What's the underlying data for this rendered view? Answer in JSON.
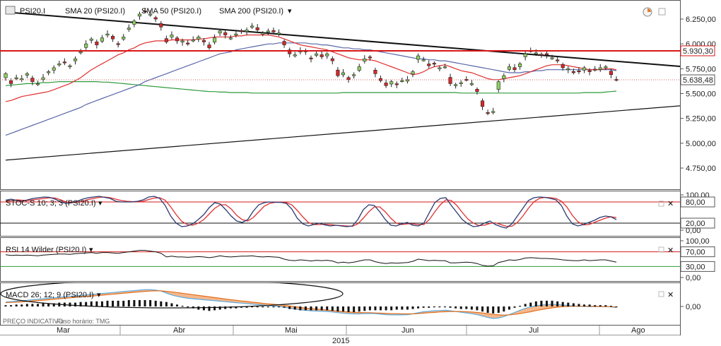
{
  "legend": {
    "symbol": "PSI20.I",
    "sma20": "SMA 20 (PSI20.I)",
    "sma50": "SMA 50 (PSI20.I)",
    "sma200": "SMA 200 (PSI20.I)",
    "stoch": "STOC-S 10; 3; 3 (PSI20.I)",
    "rsi": "RSI 14 Wilder (PSI20.I)",
    "macd": "MACD 26; 12; 9 (PSI20.I)"
  },
  "footer": {
    "note": "PREÇO INDICATIVO",
    "tz": "Fuso horário: TMG",
    "year": "2015"
  },
  "colors": {
    "sma20": "#e03030",
    "sma50": "#5a68a8",
    "sma200": "#2e9a3c",
    "up": "#8ed060",
    "down": "#d82828",
    "hline": "#d81818",
    "stochK": "#2a3a70",
    "stochD": "#e03030",
    "macdHist": "#111111",
    "macdLine": "#5aaae0",
    "macdFill": "#f3b080",
    "signal": "#e07020"
  },
  "chart_data": [
    {
      "type": "candlestick",
      "name": "PSI20.I",
      "x_months": [
        "Mar",
        "Abr",
        "Mai",
        "Jun",
        "Jul",
        "Ago"
      ],
      "y_ticks": [
        "6.250,00",
        "6.000,00",
        "5.750,00",
        "5.500,00",
        "5.250,00",
        "5.000,00",
        "4.750,00"
      ],
      "ylim": [
        4600,
        6400
      ],
      "last_price": "5.638,48",
      "resistance": "5.930,30",
      "closes": [
        5700,
        5600,
        5660,
        5650,
        5700,
        5620,
        5600,
        5660,
        5720,
        5760,
        5800,
        5810,
        5780,
        5850,
        5920,
        6000,
        6050,
        5990,
        6060,
        6100,
        6050,
        6000,
        6070,
        6160,
        6230,
        6300,
        6330,
        6300,
        6250,
        6170,
        6020,
        6090,
        6030,
        6030,
        6000,
        6040,
        6070,
        6020,
        5960,
        6060,
        6130,
        6090,
        6060,
        6100,
        6130,
        6140,
        6180,
        6140,
        6110,
        6130,
        6120,
        6110,
        5990,
        5900,
        5890,
        5930,
        5920,
        5850,
        5900,
        5870,
        5900,
        5830,
        5680,
        5710,
        5640,
        5690,
        5770,
        5850,
        5860,
        5700,
        5630,
        5580,
        5620,
        5590,
        5630,
        5640,
        5720,
        5880,
        5840,
        5780,
        5800,
        5760,
        5770,
        5600,
        5590,
        5610,
        5640,
        5600,
        5520,
        5370,
        5300,
        5320,
        5620,
        5680,
        5770,
        5740,
        5800,
        5900,
        5930,
        5910,
        5890,
        5890,
        5860,
        5830,
        5760,
        5750,
        5710,
        5720,
        5760,
        5720,
        5740,
        5760,
        5770,
        5690,
        5640
      ],
      "sma20": [
        5420,
        5430,
        5450,
        5470,
        5480,
        5490,
        5500,
        5510,
        5520,
        5540,
        5560,
        5580,
        5600,
        5630,
        5660,
        5700,
        5740,
        5770,
        5800,
        5830,
        5860,
        5890,
        5910,
        5940,
        5960,
        5990,
        6010,
        6020,
        6030,
        6030,
        6030,
        6040,
        6040,
        6040,
        6040,
        6040,
        6050,
        6050,
        6060,
        6070,
        6070,
        6070,
        6070,
        6080,
        6080,
        6090,
        6090,
        6090,
        6090,
        6090,
        6080,
        6070,
        6050,
        6030,
        6010,
        5990,
        5980,
        5970,
        5960,
        5950,
        5940,
        5920,
        5900,
        5880,
        5860,
        5850,
        5840,
        5840,
        5840,
        5830,
        5810,
        5790,
        5770,
        5750,
        5730,
        5710,
        5690,
        5700,
        5720,
        5750,
        5770,
        5780,
        5790,
        5770,
        5750,
        5730,
        5720,
        5710,
        5690,
        5670,
        5650,
        5640,
        5640,
        5650,
        5660,
        5670,
        5680,
        5700,
        5720,
        5740,
        5760,
        5780,
        5790,
        5790,
        5790,
        5780,
        5770,
        5760,
        5750,
        5740,
        5740,
        5740,
        5750,
        5750,
        5740
      ],
      "sma50": [
        5080,
        5100,
        5120,
        5140,
        5160,
        5180,
        5200,
        5220,
        5240,
        5260,
        5280,
        5300,
        5320,
        5340,
        5360,
        5390,
        5410,
        5430,
        5450,
        5470,
        5490,
        5510,
        5530,
        5550,
        5570,
        5590,
        5620,
        5640,
        5660,
        5680,
        5700,
        5720,
        5740,
        5760,
        5780,
        5800,
        5820,
        5840,
        5860,
        5880,
        5900,
        5910,
        5920,
        5940,
        5950,
        5960,
        5970,
        5980,
        5990,
        6000,
        6000,
        6010,
        6010,
        6010,
        6010,
        6010,
        6010,
        6000,
        6000,
        5990,
        5990,
        5980,
        5970,
        5960,
        5960,
        5950,
        5950,
        5940,
        5940,
        5930,
        5920,
        5910,
        5900,
        5890,
        5880,
        5870,
        5860,
        5850,
        5850,
        5840,
        5840,
        5830,
        5830,
        5820,
        5810,
        5800,
        5790,
        5780,
        5770,
        5760,
        5750,
        5740,
        5730,
        5720,
        5710,
        5710,
        5710,
        5720,
        5720,
        5730,
        5730,
        5740,
        5740,
        5740,
        5740,
        5740,
        5740,
        5740,
        5740,
        5740,
        5740,
        5740,
        5740,
        5740,
        5730
      ],
      "sma200": [
        5580,
        5585,
        5590,
        5595,
        5600,
        5600,
        5605,
        5610,
        5610,
        5615,
        5620,
        5620,
        5620,
        5620,
        5620,
        5620,
        5620,
        5620,
        5615,
        5615,
        5610,
        5605,
        5600,
        5595,
        5590,
        5585,
        5580,
        5575,
        5570,
        5565,
        5560,
        5555,
        5550,
        5545,
        5540,
        5535,
        5530,
        5525,
        5520,
        5520,
        5515,
        5515,
        5510,
        5510,
        5510,
        5510,
        5505,
        5505,
        5505,
        5505,
        5505,
        5505,
        5505,
        5505,
        5505,
        5505,
        5505,
        5505,
        5505,
        5505,
        5505,
        5505,
        5505,
        5510,
        5510,
        5510,
        5510,
        5510,
        5510,
        5510,
        5510,
        5510,
        5510,
        5510,
        5510,
        5510,
        5510,
        5510,
        5510,
        5510,
        5510,
        5510,
        5510,
        5510,
        5510,
        5505,
        5505,
        5505,
        5505,
        5505,
        5505,
        5505,
        5505,
        5505,
        5505,
        5505,
        5505,
        5505,
        5505,
        5505,
        5505,
        5505,
        5505,
        5505,
        5505,
        5505,
        5505,
        5505,
        5510,
        5510,
        5510,
        5510,
        5515,
        5520,
        5525
      ],
      "trendline_down": [
        [
          0,
          6320
        ],
        [
          129,
          5760
        ]
      ],
      "trendline_up": [
        [
          0,
          4830
        ],
        [
          129,
          5390
        ]
      ]
    },
    {
      "type": "line",
      "name": "STOC-S 10; 3; 3",
      "y_ticks": [
        "100,00",
        "80,00",
        "20,00",
        "0,00"
      ],
      "levels": [
        80,
        20
      ],
      "k": [
        85,
        88,
        84,
        82,
        86,
        90,
        92,
        94,
        93,
        88,
        80,
        76,
        78,
        82,
        88,
        92,
        94,
        96,
        93,
        90,
        82,
        80,
        80,
        80,
        82,
        86,
        94,
        96,
        90,
        70,
        40,
        20,
        10,
        12,
        18,
        30,
        44,
        64,
        78,
        74,
        58,
        40,
        26,
        22,
        30,
        54,
        72,
        78,
        80,
        79,
        79,
        76,
        60,
        34,
        18,
        12,
        16,
        20,
        15,
        12,
        14,
        12,
        10,
        12,
        30,
        58,
        72,
        70,
        52,
        30,
        14,
        12,
        18,
        22,
        14,
        12,
        20,
        50,
        78,
        90,
        92,
        70,
        50,
        30,
        18,
        10,
        12,
        20,
        26,
        16,
        10,
        6,
        18,
        40,
        62,
        84,
        92,
        94,
        93,
        90,
        86,
        70,
        40,
        18,
        12,
        16,
        22,
        28,
        36,
        40,
        38,
        30
      ],
      "d": [
        82,
        84,
        86,
        85,
        84,
        86,
        88,
        90,
        92,
        91,
        86,
        80,
        78,
        79,
        82,
        87,
        90,
        93,
        94,
        92,
        88,
        84,
        82,
        81,
        81,
        82,
        87,
        91,
        92,
        85,
        66,
        44,
        25,
        16,
        14,
        20,
        30,
        46,
        62,
        72,
        72,
        60,
        42,
        30,
        26,
        36,
        52,
        68,
        76,
        79,
        79,
        78,
        72,
        56,
        38,
        22,
        16,
        16,
        17,
        16,
        14,
        13,
        12,
        11,
        18,
        34,
        52,
        66,
        66,
        52,
        34,
        20,
        16,
        18,
        18,
        16,
        16,
        30,
        52,
        72,
        86,
        84,
        70,
        50,
        32,
        20,
        13,
        14,
        19,
        21,
        16,
        11,
        11,
        22,
        40,
        62,
        80,
        90,
        93,
        92,
        90,
        82,
        66,
        42,
        24,
        15,
        16,
        22,
        28,
        34,
        38,
        36
      ]
    },
    {
      "type": "line",
      "name": "RSI 14 Wilder",
      "y_ticks": [
        "100,00",
        "70,00",
        "30,00",
        "0,00"
      ],
      "levels": [
        70,
        30
      ],
      "values": [
        62,
        60,
        61,
        60,
        61,
        60,
        59,
        61,
        62,
        63,
        64,
        64,
        63,
        65,
        66,
        67,
        68,
        66,
        68,
        68,
        67,
        66,
        68,
        70,
        72,
        74,
        74,
        72,
        70,
        66,
        56,
        58,
        56,
        56,
        55,
        56,
        57,
        56,
        54,
        56,
        59,
        57,
        56,
        57,
        58,
        58,
        59,
        57,
        56,
        57,
        56,
        55,
        50,
        47,
        46,
        48,
        47,
        45,
        47,
        46,
        47,
        45,
        40,
        42,
        40,
        42,
        45,
        48,
        48,
        43,
        40,
        38,
        40,
        39,
        40,
        41,
        44,
        50,
        48,
        46,
        47,
        46,
        46,
        40,
        40,
        41,
        42,
        41,
        38,
        33,
        31,
        32,
        41,
        44,
        48,
        47,
        49,
        53,
        54,
        53,
        52,
        52,
        51,
        50,
        48,
        47,
        46,
        46,
        48,
        46,
        47,
        48,
        48,
        45,
        42
      ]
    },
    {
      "type": "bar",
      "name": "MACD 26; 12; 9",
      "y_ticks": [
        "0,00"
      ],
      "hist": [
        2,
        2,
        3,
        3,
        4,
        4,
        4,
        5,
        5,
        5,
        6,
        6,
        6,
        6,
        7,
        7,
        8,
        8,
        8,
        9,
        9,
        9,
        9,
        10,
        10,
        10,
        10,
        10,
        9,
        8,
        7,
        5,
        3,
        1,
        -1,
        -3,
        -5,
        -6,
        -7,
        -6,
        -5,
        -4,
        -3,
        -3,
        -2,
        -2,
        -1,
        -1,
        -1,
        0,
        0,
        -1,
        -2,
        -4,
        -5,
        -6,
        -6,
        -6,
        -6,
        -6,
        -6,
        -7,
        -8,
        -8,
        -9,
        -9,
        -8,
        -7,
        -6,
        -6,
        -6,
        -6,
        -6,
        -5,
        -5,
        -5,
        -4,
        -3,
        -2,
        -2,
        -1,
        -1,
        -1,
        -2,
        -3,
        -4,
        -4,
        -5,
        -6,
        -8,
        -10,
        -11,
        -10,
        -8,
        -5,
        -2,
        1,
        4,
        6,
        8,
        9,
        9,
        9,
        8,
        7,
        6,
        5,
        4,
        3,
        3,
        2,
        2,
        2,
        1,
        0
      ],
      "macd": [
        18,
        20,
        22,
        24,
        26,
        28,
        30,
        32,
        34,
        36,
        38,
        40,
        42,
        44,
        46,
        48,
        50,
        52,
        54,
        56,
        58,
        60,
        62,
        64,
        66,
        68,
        70,
        70,
        68,
        64,
        56,
        48,
        42,
        38,
        34,
        32,
        30,
        28,
        26,
        24,
        22,
        20,
        18,
        16,
        14,
        12,
        10,
        8,
        6,
        4,
        2,
        0,
        -3,
        -7,
        -11,
        -14,
        -16,
        -18,
        -19,
        -20,
        -21,
        -23,
        -26,
        -28,
        -30,
        -31,
        -31,
        -30,
        -29,
        -30,
        -32,
        -34,
        -35,
        -35,
        -35,
        -34,
        -31,
        -26,
        -22,
        -20,
        -18,
        -17,
        -16,
        -18,
        -21,
        -24,
        -27,
        -30,
        -34,
        -40,
        -46,
        -50,
        -48,
        -42,
        -34,
        -25,
        -16,
        -8,
        -2,
        3,
        6,
        8,
        9,
        8,
        6,
        4,
        2,
        1,
        0,
        -1,
        -1,
        -1,
        -1,
        -2,
        -4
      ],
      "signal": [
        16,
        17,
        18,
        19,
        21,
        22,
        24,
        26,
        28,
        30,
        32,
        34,
        36,
        38,
        40,
        41,
        43,
        45,
        47,
        49,
        51,
        53,
        55,
        57,
        59,
        61,
        63,
        64,
        65,
        65,
        63,
        61,
        58,
        55,
        52,
        49,
        46,
        43,
        40,
        37,
        34,
        31,
        28,
        26,
        23,
        21,
        18,
        16,
        13,
        11,
        9,
        7,
        5,
        2,
        -1,
        -4,
        -7,
        -9,
        -11,
        -13,
        -15,
        -17,
        -19,
        -21,
        -23,
        -24,
        -25,
        -26,
        -26,
        -27,
        -28,
        -29,
        -30,
        -30,
        -31,
        -31,
        -31,
        -30,
        -28,
        -26,
        -25,
        -23,
        -22,
        -21,
        -21,
        -21,
        -22,
        -23,
        -25,
        -27,
        -30,
        -33,
        -35,
        -36,
        -35,
        -33,
        -30,
        -26,
        -22,
        -17,
        -13,
        -9,
        -6,
        -3,
        -1,
        0,
        1,
        1,
        1,
        1,
        0,
        0,
        -1,
        -1,
        -2
      ]
    }
  ]
}
